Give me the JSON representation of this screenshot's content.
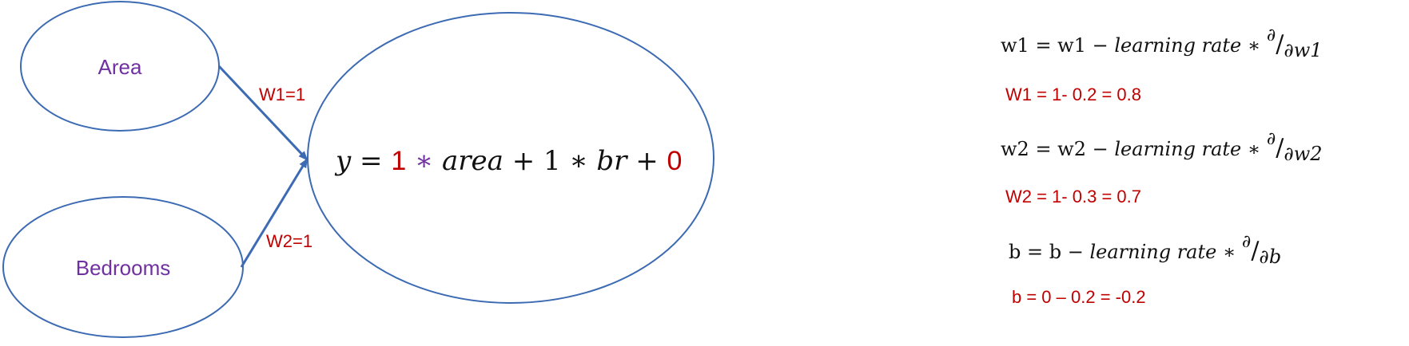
{
  "nodes": {
    "area": "Area",
    "bedrooms": "Bedrooms"
  },
  "weights": {
    "w1": "W1=1",
    "w2": "W2=1"
  },
  "equation": {
    "y": "y",
    "equals": " = ",
    "w1": "1",
    "times1": " ∗ ",
    "area": "area",
    "plus1": " + 1 ∗ ",
    "br": "br",
    "plus2": " + ",
    "b": "0"
  },
  "updates": [
    {
      "lhs": "w1 = w1",
      "op": " − ",
      "rate": "learning rate",
      "star": " ∗ ",
      "d_num": "∂",
      "d_den": "∂w1",
      "result": "W1 = 1- 0.2 = 0.8"
    },
    {
      "lhs": "w2 = w2",
      "op": " − ",
      "rate": "learning rate",
      "star": " ∗ ",
      "d_num": "∂",
      "d_den": "∂w2",
      "result": "W2 = 1- 0.3 = 0.7"
    },
    {
      "lhs": "b = b",
      "op": " − ",
      "rate": "learning rate",
      "star": " ∗ ",
      "d_num": "∂",
      "d_den": "∂b",
      "result": "b = 0 – 0.2 = -0.2"
    }
  ],
  "colors": {
    "stroke": "#3d6bb3",
    "node_text": "#7030a0",
    "red": "#c00000"
  }
}
